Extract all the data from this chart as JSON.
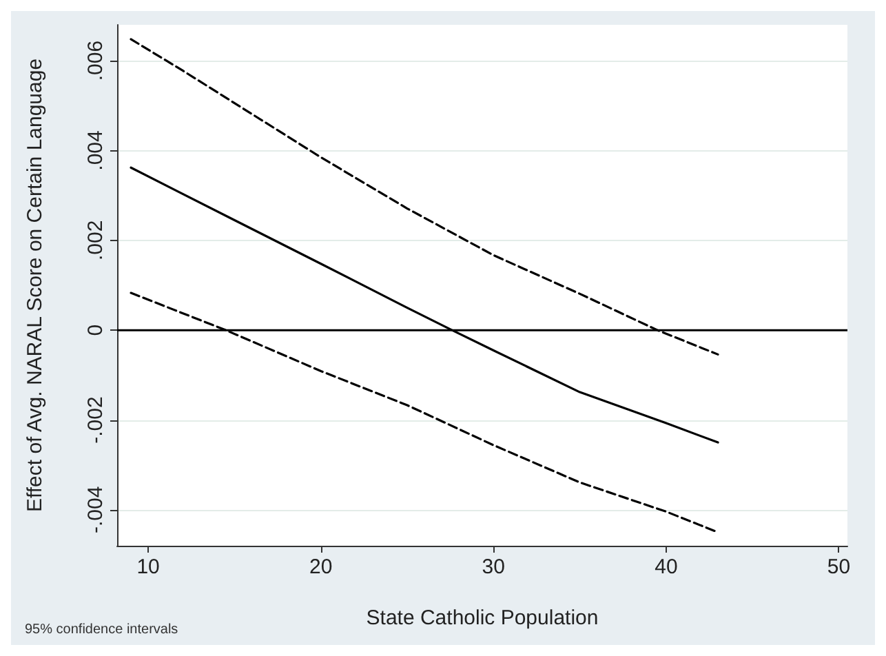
{
  "chart_data": {
    "type": "line",
    "xlabel": "State Catholic Population",
    "ylabel": "Effect of Avg. NARAL Score on Certain Language",
    "annotations": [
      "95% confidence intervals"
    ],
    "xlim": [
      8.2,
      50.5
    ],
    "xticks": [
      10,
      20,
      30,
      40,
      50
    ],
    "ylim": [
      -0.0048,
      0.0068
    ],
    "yticks": [
      {
        "value": -0.004,
        "label": "-.004"
      },
      {
        "value": -0.002,
        "label": "-.002"
      },
      {
        "value": 0,
        "label": "0"
      },
      {
        "value": 0.002,
        "label": ".002"
      },
      {
        "value": 0.004,
        "label": ".004"
      },
      {
        "value": 0.006,
        "label": ".006"
      }
    ],
    "grid": "y",
    "marker": "none",
    "ref_lines": [
      {
        "axis": "y",
        "value": 0,
        "color": "#000000",
        "line_style": "solid"
      }
    ],
    "series": [
      {
        "color": "#000000",
        "line_style": "dashed",
        "x": [
          9,
          12,
          20,
          25,
          30,
          35,
          39.5,
          43
        ],
        "values": [
          0.00648,
          0.00578,
          0.00385,
          0.00271,
          0.00167,
          0.00081,
          0,
          -0.00054
        ]
      },
      {
        "color": "#000000",
        "line_style": "solid",
        "x": [
          9,
          15,
          20,
          25,
          27.6,
          30,
          35,
          40,
          43
        ],
        "values": [
          0.00362,
          0.00245,
          0.00148,
          0.0005,
          0,
          -0.00045,
          -0.00138,
          -0.00207,
          -0.0025
        ]
      },
      {
        "color": "#000000",
        "line_style": "dashed",
        "x": [
          9,
          14.5,
          20,
          25,
          30,
          35,
          40,
          43
        ],
        "values": [
          0.00083,
          0,
          -0.00091,
          -0.00167,
          -0.00256,
          -0.00339,
          -0.00404,
          -0.0045
        ]
      }
    ]
  }
}
